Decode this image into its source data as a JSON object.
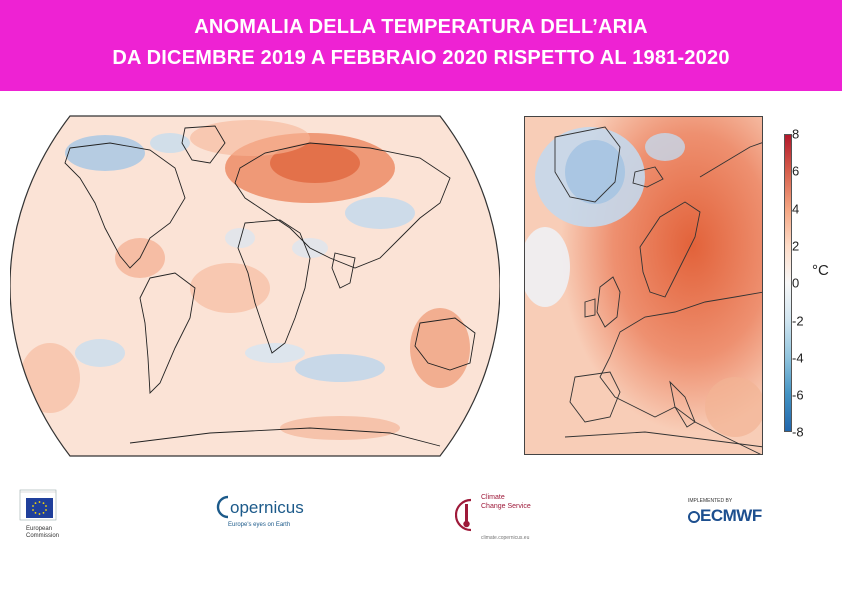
{
  "title": {
    "line1": "ANOMALIA DELLA TEMPERATURA DELL’ARIA",
    "line2": "DA DICEMBRE 2019 A FEBBRAIO 2020 RISPETTO AL 1981-2020"
  },
  "legend": {
    "unit": "°C",
    "ticks": [
      "8",
      "6",
      "4",
      "2",
      "0",
      "-2",
      "-4",
      "-6",
      "-8"
    ],
    "colors": [
      "#b2182b",
      "#d6604d",
      "#f4a582",
      "#fddbc7",
      "#f7f7f7",
      "#d1e5f0",
      "#92c5de",
      "#4393c3",
      "#2166ac"
    ]
  },
  "maps": {
    "world_name": "global-anomaly-map",
    "europe_name": "europe-anomaly-map"
  },
  "logos": {
    "ec_caption": "European\nCommission",
    "copernicus_name": "opernicus",
    "copernicus_tag": "Europe's eyes on Earth",
    "c3s_line1": "Climate",
    "c3s_line2": "Change Service",
    "c3s_url": "climate.copernicus.eu",
    "ecmwf_impl": "IMPLEMENTED BY",
    "ecmwf_name": "ECMWF"
  },
  "colors": {
    "banner": "#ee22d3",
    "warm": "#e8764f",
    "cold": "#9dbfe0",
    "neutral": "#fbe3d6"
  }
}
